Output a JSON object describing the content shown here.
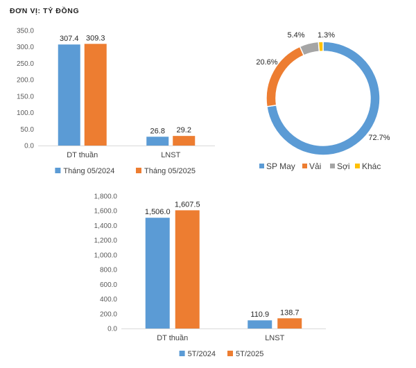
{
  "unit_label": "ĐƠN VỊ: TỶ ĐỒNG",
  "colors": {
    "blue": "#5B9BD5",
    "orange": "#ED7D31",
    "gray": "#A5A5A5",
    "yellow": "#FFC000",
    "axis": "#D9D9D9"
  },
  "chart_data": [
    {
      "type": "bar",
      "categories": [
        "DT thuần",
        "LNST"
      ],
      "series": [
        {
          "name": "Tháng 05/2024",
          "values": [
            307.4,
            26.8
          ],
          "labels": [
            "307.4",
            "26.8"
          ],
          "color": "#5B9BD5"
        },
        {
          "name": "Tháng 05/2025",
          "values": [
            309.3,
            29.2
          ],
          "labels": [
            "309.3",
            "29.2"
          ],
          "color": "#ED7D31"
        }
      ],
      "ylim": [
        0,
        350
      ],
      "yticks": [
        "0.0",
        "50.0",
        "100.0",
        "150.0",
        "200.0",
        "250.0",
        "300.0",
        "350.0"
      ],
      "legend": "bottom"
    },
    {
      "type": "pie",
      "donut": true,
      "categories": [
        "SP May",
        "Vải",
        "Sợi",
        "Khác"
      ],
      "values": [
        72.7,
        20.6,
        5.4,
        1.3
      ],
      "labels": [
        "72.7%",
        "20.6%",
        "5.4%",
        "1.3%"
      ],
      "colors": [
        "#5B9BD5",
        "#ED7D31",
        "#A5A5A5",
        "#FFC000"
      ],
      "legend": "bottom"
    },
    {
      "type": "bar",
      "categories": [
        "DT thuần",
        "LNST"
      ],
      "series": [
        {
          "name": "5T/2024",
          "values": [
            1506.0,
            110.9
          ],
          "labels": [
            "1,506.0",
            "110.9"
          ],
          "color": "#5B9BD5"
        },
        {
          "name": "5T/2025",
          "values": [
            1607.5,
            138.7
          ],
          "labels": [
            "1,607.5",
            "138.7"
          ],
          "color": "#ED7D31"
        }
      ],
      "ylim": [
        0,
        1800
      ],
      "yticks": [
        "0.0",
        "200.0",
        "400.0",
        "600.0",
        "800.0",
        "1,000.0",
        "1,200.0",
        "1,400.0",
        "1,600.0",
        "1,800.0"
      ],
      "legend": "bottom"
    }
  ]
}
